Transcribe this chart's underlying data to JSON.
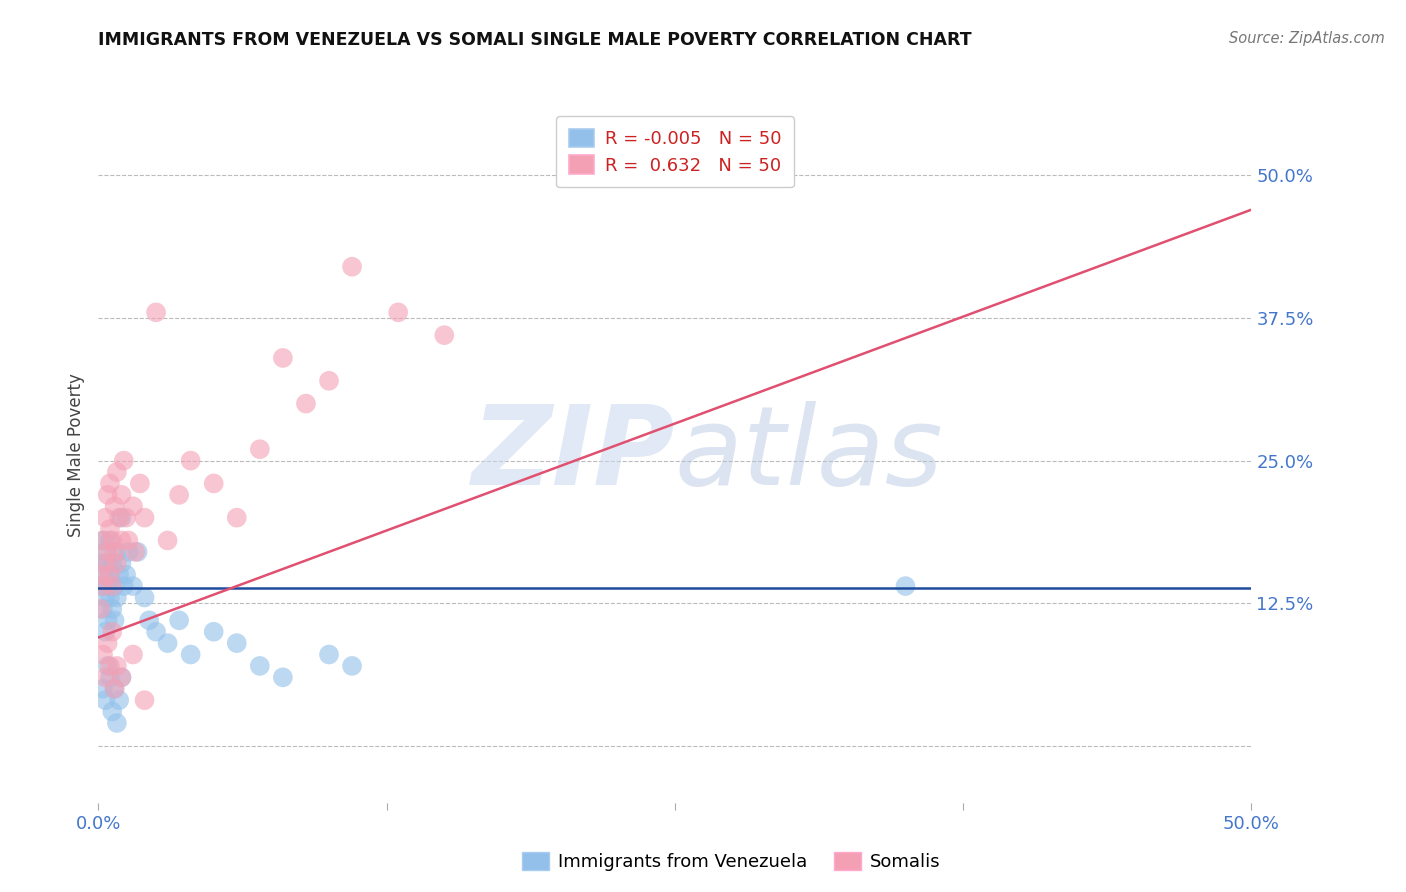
{
  "title": "IMMIGRANTS FROM VENEZUELA VS SOMALI SINGLE MALE POVERTY CORRELATION CHART",
  "source": "Source: ZipAtlas.com",
  "ylabel": "Single Male Poverty",
  "xlim": [
    0.0,
    0.5
  ],
  "ylim": [
    -0.05,
    0.56
  ],
  "R_venezuela": -0.005,
  "R_somali": 0.632,
  "N_venezuela": 50,
  "N_somali": 50,
  "color_venezuela": "#92C0EA",
  "color_somali": "#F4A0B4",
  "line_color_venezuela": "#1E4D9E",
  "line_color_somali": "#E05070",
  "legend_label_venezuela": "Immigrants from Venezuela",
  "legend_label_somali": "Somalis",
  "background_color": "#FFFFFF",
  "grid_color": "#BBBBBB",
  "somali_line_start_y": 0.095,
  "somali_line_end_y": 0.47,
  "venezuela_line_y": 0.138,
  "venezuela_x": [
    0.001,
    0.001,
    0.002,
    0.002,
    0.002,
    0.003,
    0.003,
    0.003,
    0.004,
    0.004,
    0.004,
    0.005,
    0.005,
    0.005,
    0.006,
    0.006,
    0.007,
    0.007,
    0.008,
    0.008,
    0.009,
    0.01,
    0.01,
    0.011,
    0.012,
    0.013,
    0.015,
    0.017,
    0.02,
    0.022,
    0.025,
    0.03,
    0.035,
    0.04,
    0.05,
    0.06,
    0.07,
    0.08,
    0.1,
    0.11,
    0.002,
    0.003,
    0.004,
    0.005,
    0.006,
    0.007,
    0.008,
    0.009,
    0.01,
    0.35
  ],
  "venezuela_y": [
    0.16,
    0.14,
    0.18,
    0.15,
    0.12,
    0.17,
    0.13,
    0.1,
    0.16,
    0.14,
    0.11,
    0.15,
    0.18,
    0.13,
    0.16,
    0.12,
    0.14,
    0.11,
    0.17,
    0.13,
    0.15,
    0.2,
    0.16,
    0.14,
    0.15,
    0.17,
    0.14,
    0.17,
    0.13,
    0.11,
    0.1,
    0.09,
    0.11,
    0.08,
    0.1,
    0.09,
    0.07,
    0.06,
    0.08,
    0.07,
    0.05,
    0.04,
    0.07,
    0.06,
    0.03,
    0.05,
    0.02,
    0.04,
    0.06,
    0.14
  ],
  "somali_x": [
    0.001,
    0.001,
    0.002,
    0.002,
    0.003,
    0.003,
    0.004,
    0.004,
    0.005,
    0.005,
    0.005,
    0.006,
    0.006,
    0.007,
    0.007,
    0.008,
    0.008,
    0.009,
    0.01,
    0.01,
    0.011,
    0.012,
    0.013,
    0.015,
    0.016,
    0.018,
    0.02,
    0.025,
    0.03,
    0.035,
    0.04,
    0.05,
    0.06,
    0.07,
    0.08,
    0.09,
    0.1,
    0.11,
    0.13,
    0.15,
    0.002,
    0.003,
    0.004,
    0.005,
    0.006,
    0.007,
    0.008,
    0.01,
    0.015,
    0.02
  ],
  "somali_y": [
    0.15,
    0.12,
    0.18,
    0.14,
    0.2,
    0.16,
    0.22,
    0.17,
    0.19,
    0.15,
    0.23,
    0.18,
    0.14,
    0.21,
    0.17,
    0.24,
    0.16,
    0.2,
    0.22,
    0.18,
    0.25,
    0.2,
    0.18,
    0.21,
    0.17,
    0.23,
    0.2,
    0.38,
    0.18,
    0.22,
    0.25,
    0.23,
    0.2,
    0.26,
    0.34,
    0.3,
    0.32,
    0.42,
    0.38,
    0.36,
    0.08,
    0.06,
    0.09,
    0.07,
    0.1,
    0.05,
    0.07,
    0.06,
    0.08,
    0.04
  ]
}
